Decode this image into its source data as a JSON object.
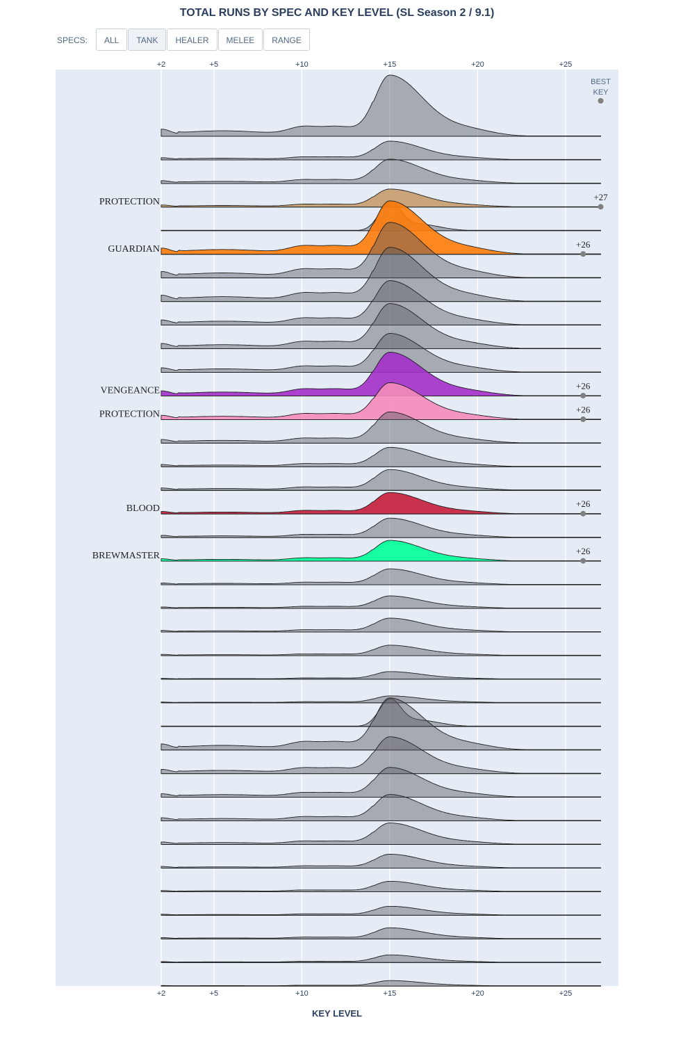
{
  "title": "TOTAL RUNS BY SPEC AND KEY LEVEL (SL Season 2 / 9.1)",
  "specs_label": "SPECS:",
  "spec_buttons": [
    "ALL",
    "TANK",
    "HEALER",
    "MELEE",
    "RANGE"
  ],
  "active_button": "TANK",
  "colors": {
    "plot_bg": "#e5ecf6",
    "gray_fill": "rgba(88,92,98,0.45)",
    "line": "#1f1f1f",
    "marker": "#808080",
    "PROTECTION_PAL": "#c79c6e",
    "GUARDIAN": "#ff7c0a",
    "VENGEANCE": "#a330c9",
    "PROTECTION_PRIEST": "#f48cba",
    "BLOOD": "#c41e3a",
    "BREWMASTER": "#00ff98"
  },
  "chart_data": {
    "type": "ridgeline",
    "title": "TOTAL RUNS BY SPEC AND KEY LEVEL (SL Season 2 / 9.1)",
    "xlabel": "KEY LEVEL",
    "ylabel": "",
    "xlim": [
      2,
      27
    ],
    "x_ticks": [
      "+2",
      "+5",
      "+10",
      "+15",
      "+20",
      "+25"
    ],
    "x_tick_values": [
      2,
      5,
      10,
      15,
      20,
      25
    ],
    "best_key_header": "BEST KEY",
    "grid": true,
    "series": [
      {
        "peak": 88,
        "baseline": 14,
        "narrow": false,
        "color": "gray"
      },
      {
        "peak": 27,
        "baseline": 8,
        "narrow": false,
        "color": "gray"
      },
      {
        "peak": 35,
        "baseline": 8,
        "narrow": false,
        "color": "gray"
      },
      {
        "name": "PROTECTION",
        "peak": 26,
        "baseline": 5,
        "narrow": false,
        "color": "PROTECTION_PAL",
        "best_key": "+27",
        "best_value": 27
      },
      {
        "peak": 42,
        "baseline": 1,
        "narrow": true,
        "color": "gray"
      },
      {
        "name": "GUARDIAN",
        "peak": 77,
        "baseline": 12,
        "narrow": false,
        "color": "GUARDIAN",
        "best_key": "+26",
        "best_value": 26
      },
      {
        "peak": 80,
        "baseline": 12,
        "narrow": false,
        "color": "gray"
      },
      {
        "peak": 78,
        "baseline": 12,
        "narrow": false,
        "color": "gray"
      },
      {
        "peak": 64,
        "baseline": 12,
        "narrow": false,
        "color": "gray"
      },
      {
        "peak": 65,
        "baseline": 12,
        "narrow": false,
        "color": "gray"
      },
      {
        "peak": 56,
        "baseline": 12,
        "narrow": false,
        "color": "gray"
      },
      {
        "name": "VENGEANCE",
        "peak": 63,
        "baseline": 15,
        "narrow": false,
        "color": "VENGEANCE",
        "best_key": "+26",
        "best_value": 26
      },
      {
        "name": "PROTECTION",
        "peak": 53,
        "baseline": 12,
        "narrow": false,
        "color": "PROTECTION_PRIEST",
        "best_key": "+26",
        "best_value": 26
      },
      {
        "peak": 45,
        "baseline": 6,
        "narrow": false,
        "color": "gray"
      },
      {
        "peak": 28,
        "baseline": 5,
        "narrow": false,
        "color": "gray"
      },
      {
        "peak": 30,
        "baseline": 4,
        "narrow": false,
        "color": "gray"
      },
      {
        "name": "BLOOD",
        "peak": 31,
        "baseline": 4,
        "narrow": false,
        "color": "BLOOD",
        "best_key": "+26",
        "best_value": 26
      },
      {
        "peak": 28,
        "baseline": 3,
        "narrow": false,
        "color": "gray"
      },
      {
        "name": "BREWMASTER",
        "peak": 30,
        "baseline": 3,
        "narrow": false,
        "color": "BREWMASTER",
        "best_key": "+26",
        "best_value": 26
      },
      {
        "peak": 23,
        "baseline": 3,
        "narrow": false,
        "color": "gray"
      },
      {
        "peak": 18,
        "baseline": 2,
        "narrow": false,
        "color": "gray"
      },
      {
        "peak": 20,
        "baseline": 2,
        "narrow": false,
        "color": "gray"
      },
      {
        "peak": 15,
        "baseline": 2,
        "narrow": false,
        "color": "gray"
      },
      {
        "peak": 11,
        "baseline": 2,
        "narrow": false,
        "color": "gray"
      },
      {
        "peak": 10,
        "baseline": 2,
        "narrow": false,
        "color": "gray"
      },
      {
        "peak": 40,
        "baseline": 1,
        "narrow": true,
        "color": "gray"
      },
      {
        "peak": 75,
        "baseline": 12,
        "narrow": false,
        "color": "gray"
      },
      {
        "peak": 53,
        "baseline": 10,
        "narrow": false,
        "color": "gray"
      },
      {
        "peak": 43,
        "baseline": 8,
        "narrow": false,
        "color": "gray"
      },
      {
        "peak": 38,
        "baseline": 6,
        "narrow": false,
        "color": "gray"
      },
      {
        "peak": 31,
        "baseline": 5,
        "narrow": false,
        "color": "gray"
      },
      {
        "peak": 20,
        "baseline": 3,
        "narrow": false,
        "color": "gray"
      },
      {
        "peak": 15,
        "baseline": 3,
        "narrow": false,
        "color": "gray"
      },
      {
        "peak": 13,
        "baseline": 2,
        "narrow": false,
        "color": "gray"
      },
      {
        "peak": 16,
        "baseline": 2,
        "narrow": false,
        "color": "gray"
      },
      {
        "peak": 11,
        "baseline": 2,
        "narrow": false,
        "color": "gray"
      },
      {
        "peak": 8,
        "baseline": 1,
        "narrow": false,
        "color": "gray"
      }
    ]
  }
}
